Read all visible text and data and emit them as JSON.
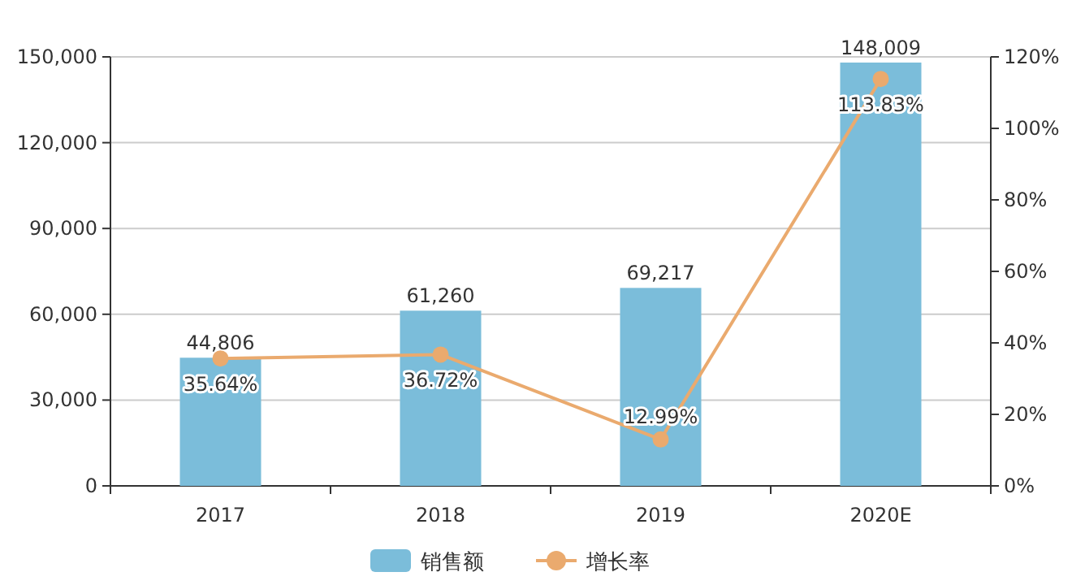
{
  "chart_data": {
    "type": "bar",
    "categories": [
      "2017",
      "2018",
      "2019",
      "2020E"
    ],
    "series": [
      {
        "name": "销售额",
        "color": "#7bbdda",
        "values": [
          44806,
          61260,
          69217,
          148009
        ],
        "value_labels": [
          "44,806",
          "61,260",
          "69,217",
          "148,009"
        ]
      },
      {
        "name": "增长率",
        "type": "line",
        "axis": "y2",
        "color": "#eaaa6e",
        "values": [
          35.64,
          36.72,
          12.99,
          113.83
        ],
        "value_labels": [
          "35.64%",
          "36.72%",
          "12.99%",
          "113.83%"
        ]
      }
    ],
    "ylim": [
      0,
      150000
    ],
    "yticks": [
      {
        "value": 0,
        "label": "0"
      },
      {
        "value": 30000,
        "label": "30,000"
      },
      {
        "value": 60000,
        "label": "60,000"
      },
      {
        "value": 90000,
        "label": "90,000"
      },
      {
        "value": 120000,
        "label": "120,000"
      },
      {
        "value": 150000,
        "label": "150,000"
      }
    ],
    "y2lim": [
      0,
      120
    ],
    "y2ticks": [
      {
        "value": 0,
        "label": "0%"
      },
      {
        "value": 20,
        "label": "20%"
      },
      {
        "value": 40,
        "label": "40%"
      },
      {
        "value": 60,
        "label": "60%"
      },
      {
        "value": 80,
        "label": "80%"
      },
      {
        "value": 100,
        "label": "100%"
      },
      {
        "value": 120,
        "label": "120%"
      }
    ],
    "grid": "y",
    "legend": "bottom",
    "marker": "circle"
  }
}
